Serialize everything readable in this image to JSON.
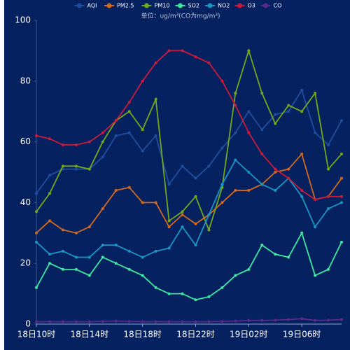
{
  "chart_data": {
    "type": "line",
    "subtitle": "单位：ug/m³(CO为mg/m³)",
    "categories": [
      "18日10时",
      null,
      null,
      null,
      "18日14时",
      null,
      null,
      null,
      "18日18时",
      null,
      null,
      null,
      "18日22时",
      null,
      null,
      null,
      "19日02时",
      null,
      null,
      null,
      "19日06时",
      null,
      null,
      null
    ],
    "ylim": [
      0,
      100
    ],
    "yticks": [
      0,
      20,
      40,
      60,
      80,
      100
    ],
    "grid": false,
    "legend": "top",
    "series": [
      {
        "name": "AQI",
        "color": "#1f4e9e",
        "values": [
          43,
          49,
          51,
          51,
          51,
          55,
          62,
          63,
          57,
          62,
          46,
          52,
          48,
          52,
          58,
          63,
          70,
          64,
          69,
          70,
          77,
          63,
          59,
          67
        ]
      },
      {
        "name": "PM2.5",
        "color": "#d2691e",
        "values": [
          30,
          34,
          31,
          30,
          32,
          38,
          44,
          45,
          40,
          40,
          32,
          36,
          33,
          36,
          40,
          44,
          44,
          46,
          50,
          51,
          56,
          41,
          42,
          48
        ]
      },
      {
        "name": "PM10",
        "color": "#74a81c",
        "values": [
          37,
          43,
          52,
          52,
          51,
          60,
          67,
          70,
          64,
          74,
          34,
          37,
          42,
          31,
          45,
          76,
          90,
          76,
          66,
          72,
          70,
          76,
          51,
          56
        ]
      },
      {
        "name": "SO2",
        "color": "#3de8a0",
        "values": [
          12,
          20,
          18,
          18,
          16,
          22,
          20,
          18,
          16,
          12,
          10,
          10,
          8,
          9,
          12,
          16,
          18,
          26,
          23,
          22,
          30,
          16,
          18,
          27
        ]
      },
      {
        "name": "NO2",
        "color": "#1a96c4",
        "values": [
          27,
          23,
          24,
          22,
          22,
          26,
          26,
          24,
          22,
          24,
          25,
          32,
          26,
          36,
          46,
          54,
          50,
          46,
          44,
          48,
          42,
          32,
          38,
          40
        ]
      },
      {
        "name": "O3",
        "color": "#cc1a3c",
        "values": [
          62,
          61,
          59,
          59,
          60,
          63,
          67,
          73,
          80,
          86,
          90,
          90,
          88,
          86,
          80,
          72,
          63,
          56,
          51,
          48,
          44,
          41,
          42,
          42
        ]
      },
      {
        "name": "CO",
        "color": "#5a2a8e",
        "values": [
          0.8,
          0.8,
          0.8,
          0.8,
          0.8,
          0.9,
          1,
          0.9,
          0.8,
          0.8,
          0.8,
          0.8,
          0.8,
          0.8,
          0.9,
          1,
          1.2,
          1.2,
          1.3,
          1.5,
          1.8,
          1.2,
          1.3,
          1.5
        ]
      }
    ]
  }
}
